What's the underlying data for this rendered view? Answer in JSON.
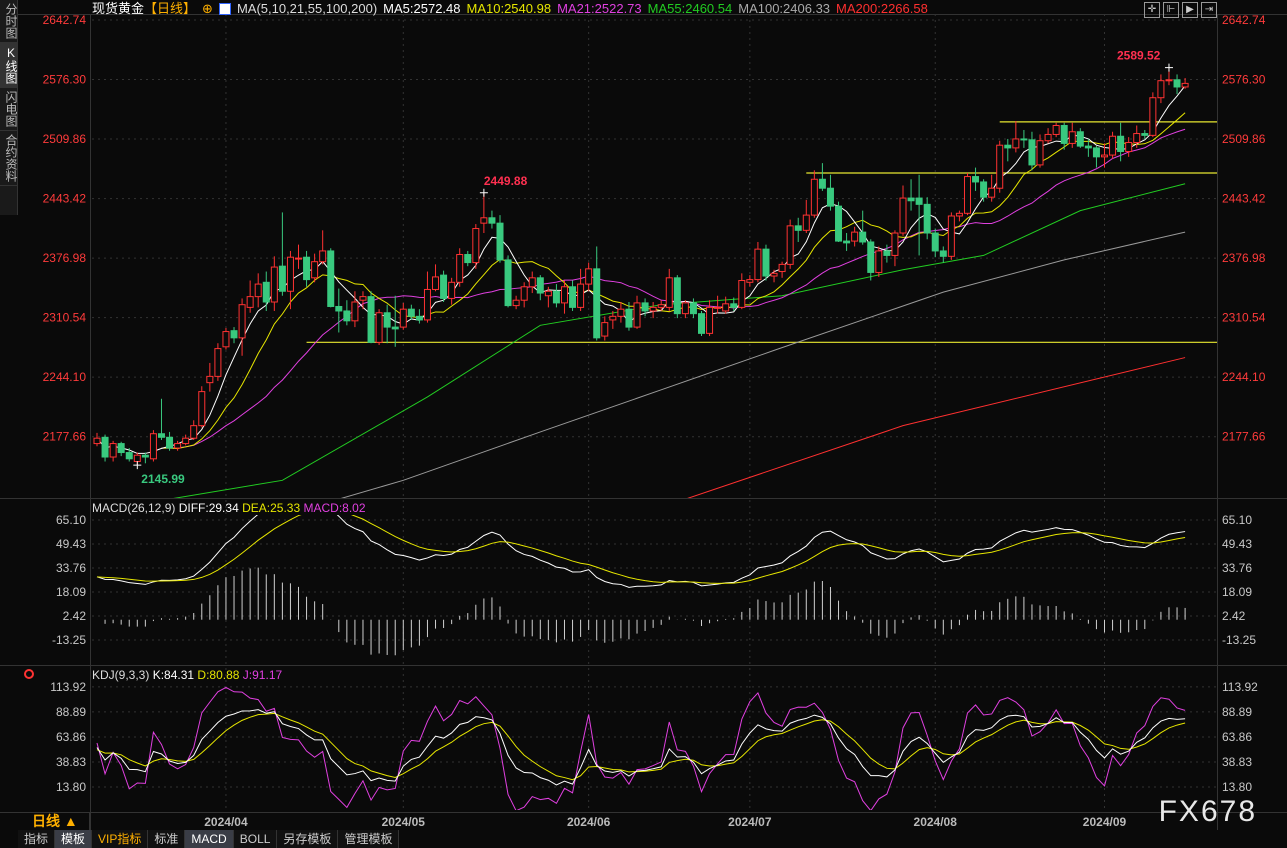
{
  "sidebar": {
    "tabs": [
      {
        "label": "分时图"
      },
      {
        "label": "K线图"
      },
      {
        "label": "闪电图"
      },
      {
        "label": "合约资料"
      }
    ]
  },
  "header": {
    "symbol": "现货黄金",
    "period": "【日线】",
    "ma_params": "MA(5,10,21,55,100,200)",
    "ma": [
      {
        "label": "MA5:2572.48",
        "color": "#ffffff"
      },
      {
        "label": "MA10:2540.98",
        "color": "#e6e600"
      },
      {
        "label": "MA21:2522.73",
        "color": "#e040e0"
      },
      {
        "label": "MA55:2460.54",
        "color": "#22cc22"
      },
      {
        "label": "MA100:2406.33",
        "color": "#aaaaaa"
      },
      {
        "label": "MA200:2266.58",
        "color": "#ff3030"
      }
    ],
    "tools": [
      "crosshair-icon",
      "zoom-in-icon",
      "scroll-right-icon",
      "goto-end-icon"
    ]
  },
  "macd_legend": {
    "name": "MACD(26,12,9)",
    "diff": "DIFF:29.34",
    "dea": "DEA:25.33",
    "macd": "MACD:8.02"
  },
  "kdj_legend": {
    "name": "KDJ(9,3,3)",
    "k": "K:84.31",
    "d": "D:80.88",
    "j": "J:91.17"
  },
  "bottom": {
    "period_label": "日线 ▲",
    "tabs": [
      {
        "label": "指标"
      },
      {
        "label": "模板"
      },
      {
        "label": "VIP指标"
      },
      {
        "label": "标准"
      },
      {
        "label": "MACD"
      },
      {
        "label": "BOLL"
      },
      {
        "label": "另存模板"
      },
      {
        "label": "管理模板"
      }
    ]
  },
  "watermark": "FX678",
  "chart_data": [
    {
      "type": "candlestick",
      "title": "现货黄金 日线",
      "price_ticks": [
        "2642.74",
        "2576.30",
        "2509.86",
        "2443.42",
        "2376.98",
        "2310.54",
        "2244.10",
        "2177.66"
      ],
      "ylim": [
        2108,
        2650
      ],
      "x_ticks": [
        {
          "index": 16,
          "label": "2024/04"
        },
        {
          "index": 38,
          "label": "2024/05"
        },
        {
          "index": 61,
          "label": "2024/06"
        },
        {
          "index": 81,
          "label": "2024/07"
        },
        {
          "index": 104,
          "label": "2024/08"
        },
        {
          "index": 125,
          "label": "2024/09"
        }
      ],
      "annotations": [
        {
          "index": 48,
          "value": 2449.88,
          "label": "2449.88",
          "color": "#ff3050"
        },
        {
          "index": 5,
          "value": 2145.99,
          "label": "2145.99",
          "color": "#39c97f"
        },
        {
          "index": 133,
          "value": 2589.52,
          "label": "2589.52",
          "color": "#ff3050"
        }
      ],
      "hlines": [
        {
          "value": 2283,
          "from": 26
        },
        {
          "value": 2472,
          "from": 88
        },
        {
          "value": 2529,
          "from": 112
        }
      ],
      "ma_long": {
        "ma55": [
          [
            9,
            2108
          ],
          [
            23,
            2129
          ],
          [
            41,
            2222
          ],
          [
            55,
            2302
          ],
          [
            70,
            2325
          ],
          [
            85,
            2335
          ],
          [
            100,
            2364
          ],
          [
            110,
            2380
          ],
          [
            122,
            2430
          ],
          [
            135,
            2460
          ]
        ],
        "ma100": [
          [
            30,
            2108
          ],
          [
            38,
            2129
          ],
          [
            55,
            2183
          ],
          [
            70,
            2230
          ],
          [
            84,
            2274
          ],
          [
            105,
            2339
          ],
          [
            120,
            2375
          ],
          [
            135,
            2406
          ]
        ],
        "ma200": [
          [
            73,
            2108
          ],
          [
            100,
            2190
          ],
          [
            135,
            2266
          ]
        ]
      },
      "ohlc": [
        [
          2170,
          2182,
          2167,
          2176
        ],
        [
          2177,
          2180,
          2150,
          2155
        ],
        [
          2155,
          2173,
          2150,
          2170
        ],
        [
          2170,
          2172,
          2156,
          2160
        ],
        [
          2160,
          2165,
          2150,
          2153
        ],
        [
          2150,
          2160,
          2146,
          2157
        ],
        [
          2157,
          2160,
          2148,
          2155
        ],
        [
          2153,
          2185,
          2150,
          2181
        ],
        [
          2181,
          2220,
          2174,
          2177
        ],
        [
          2177,
          2183,
          2162,
          2165
        ],
        [
          2165,
          2173,
          2162,
          2170
        ],
        [
          2170,
          2180,
          2168,
          2176
        ],
        [
          2176,
          2196,
          2174,
          2190
        ],
        [
          2190,
          2234,
          2188,
          2228
        ],
        [
          2238,
          2260,
          2228,
          2245
        ],
        [
          2245,
          2282,
          2240,
          2276
        ],
        [
          2278,
          2299,
          2275,
          2295
        ],
        [
          2296,
          2300,
          2282,
          2288
        ],
        [
          2288,
          2332,
          2268,
          2325
        ],
        [
          2322,
          2352,
          2316,
          2334
        ],
        [
          2334,
          2360,
          2322,
          2348
        ],
        [
          2350,
          2362,
          2318,
          2328
        ],
        [
          2328,
          2379,
          2318,
          2367
        ],
        [
          2368,
          2428,
          2335,
          2340
        ],
        [
          2340,
          2385,
          2320,
          2378
        ],
        [
          2376,
          2392,
          2365,
          2377
        ],
        [
          2378,
          2385,
          2345,
          2353
        ],
        [
          2355,
          2382,
          2350,
          2373
        ],
        [
          2373,
          2408,
          2370,
          2385
        ],
        [
          2385,
          2388,
          2322,
          2323
        ],
        [
          2323,
          2343,
          2294,
          2318
        ],
        [
          2318,
          2330,
          2302,
          2307
        ],
        [
          2307,
          2340,
          2300,
          2328
        ],
        [
          2330,
          2340,
          2320,
          2334
        ],
        [
          2334,
          2340,
          2282,
          2283
        ],
        [
          2283,
          2320,
          2280,
          2316
        ],
        [
          2316,
          2325,
          2282,
          2300
        ],
        [
          2300,
          2335,
          2278,
          2298
        ],
        [
          2300,
          2327,
          2297,
          2320
        ],
        [
          2320,
          2325,
          2308,
          2312
        ],
        [
          2312,
          2320,
          2304,
          2308
        ],
        [
          2308,
          2362,
          2305,
          2342
        ],
        [
          2342,
          2370,
          2340,
          2356
        ],
        [
          2358,
          2363,
          2328,
          2332
        ],
        [
          2332,
          2355,
          2325,
          2350
        ],
        [
          2350,
          2388,
          2345,
          2381
        ],
        [
          2381,
          2385,
          2368,
          2372
        ],
        [
          2372,
          2415,
          2365,
          2410
        ],
        [
          2416,
          2449.88,
          2405,
          2422
        ],
        [
          2422,
          2430,
          2410,
          2416
        ],
        [
          2416,
          2425,
          2372,
          2375
        ],
        [
          2375,
          2380,
          2322,
          2324
        ],
        [
          2324,
          2335,
          2320,
          2330
        ],
        [
          2330,
          2350,
          2322,
          2345
        ],
        [
          2345,
          2362,
          2338,
          2355
        ],
        [
          2355,
          2358,
          2330,
          2338
        ],
        [
          2335,
          2345,
          2322,
          2340
        ],
        [
          2340,
          2348,
          2322,
          2327
        ],
        [
          2327,
          2352,
          2315,
          2345
        ],
        [
          2345,
          2352,
          2318,
          2322
        ],
        [
          2322,
          2365,
          2318,
          2348
        ],
        [
          2348,
          2372,
          2340,
          2365
        ],
        [
          2365,
          2390,
          2285,
          2288
        ],
        [
          2290,
          2312,
          2285,
          2305
        ],
        [
          2308,
          2318,
          2298,
          2312
        ],
        [
          2312,
          2328,
          2305,
          2320
        ],
        [
          2320,
          2328,
          2296,
          2300
        ],
        [
          2300,
          2335,
          2298,
          2327
        ],
        [
          2327,
          2332,
          2312,
          2318
        ],
        [
          2318,
          2328,
          2310,
          2322
        ],
        [
          2322,
          2330,
          2318,
          2325
        ],
        [
          2322,
          2365,
          2318,
          2355
        ],
        [
          2355,
          2358,
          2310,
          2315
        ],
        [
          2315,
          2330,
          2310,
          2327
        ],
        [
          2327,
          2332,
          2310,
          2315
        ],
        [
          2315,
          2318,
          2290,
          2293
        ],
        [
          2293,
          2330,
          2290,
          2322
        ],
        [
          2322,
          2335,
          2315,
          2322
        ],
        [
          2318,
          2334,
          2315,
          2326
        ],
        [
          2326,
          2333,
          2318,
          2322
        ],
        [
          2322,
          2360,
          2320,
          2352
        ],
        [
          2350,
          2358,
          2345,
          2353
        ],
        [
          2353,
          2395,
          2350,
          2387
        ],
        [
          2387,
          2392,
          2352,
          2357
        ],
        [
          2357,
          2364,
          2350,
          2360
        ],
        [
          2362,
          2373,
          2355,
          2370
        ],
        [
          2370,
          2420,
          2365,
          2413
        ],
        [
          2413,
          2422,
          2395,
          2408
        ],
        [
          2408,
          2442,
          2405,
          2425
        ],
        [
          2425,
          2475,
          2422,
          2465
        ],
        [
          2465,
          2483,
          2452,
          2455
        ],
        [
          2455,
          2470,
          2430,
          2435
        ],
        [
          2435,
          2440,
          2395,
          2396
        ],
        [
          2396,
          2405,
          2385,
          2394
        ],
        [
          2396,
          2412,
          2390,
          2406
        ],
        [
          2406,
          2430,
          2392,
          2395
        ],
        [
          2395,
          2398,
          2352,
          2361
        ],
        [
          2361,
          2390,
          2356,
          2385
        ],
        [
          2385,
          2392,
          2372,
          2380
        ],
        [
          2380,
          2408,
          2368,
          2405
        ],
        [
          2405,
          2458,
          2402,
          2444
        ],
        [
          2444,
          2465,
          2430,
          2441
        ],
        [
          2444,
          2470,
          2380,
          2437
        ],
        [
          2437,
          2445,
          2398,
          2405
        ],
        [
          2405,
          2410,
          2378,
          2385
        ],
        [
          2385,
          2390,
          2372,
          2379
        ],
        [
          2379,
          2428,
          2375,
          2424
        ],
        [
          2424,
          2430,
          2418,
          2427
        ],
        [
          2427,
          2472,
          2425,
          2468
        ],
        [
          2468,
          2478,
          2452,
          2462
        ],
        [
          2462,
          2465,
          2440,
          2445
        ],
        [
          2445,
          2470,
          2440,
          2455
        ],
        [
          2455,
          2508,
          2450,
          2503
        ],
        [
          2503,
          2510,
          2485,
          2500
        ],
        [
          2500,
          2530,
          2495,
          2510
        ],
        [
          2510,
          2520,
          2500,
          2509
        ],
        [
          2509,
          2518,
          2475,
          2481
        ],
        [
          2481,
          2515,
          2478,
          2508
        ],
        [
          2508,
          2522,
          2505,
          2515
        ],
        [
          2515,
          2528,
          2512,
          2525
        ],
        [
          2525,
          2528,
          2498,
          2505
        ],
        [
          2505,
          2528,
          2500,
          2518
        ],
        [
          2518,
          2522,
          2500,
          2502
        ],
        [
          2502,
          2510,
          2490,
          2500
        ],
        [
          2500,
          2502,
          2478,
          2490
        ],
        [
          2490,
          2505,
          2478,
          2492
        ],
        [
          2492,
          2518,
          2488,
          2513
        ],
        [
          2513,
          2528,
          2485,
          2496
        ],
        [
          2496,
          2512,
          2490,
          2506
        ],
        [
          2506,
          2525,
          2500,
          2516
        ],
        [
          2516,
          2520,
          2510,
          2514
        ],
        [
          2514,
          2562,
          2512,
          2556
        ],
        [
          2556,
          2582,
          2550,
          2575
        ],
        [
          2575,
          2589.52,
          2570,
          2576
        ],
        [
          2576,
          2582,
          2560,
          2568
        ],
        [
          2568,
          2578,
          2566,
          2572
        ]
      ],
      "colors": {
        "up": "#ff3232",
        "down": "#39c97f",
        "hline": "#e8e830"
      }
    },
    {
      "type": "line",
      "title": "MACD(26,12,9)",
      "ticks": [
        "65.10",
        "49.43",
        "33.76",
        "18.09",
        "2.42",
        "-13.25"
      ],
      "ylim": [
        -20,
        72
      ],
      "series": [
        {
          "name": "DIFF",
          "color": "#ffffff"
        },
        {
          "name": "DEA",
          "color": "#e6e600"
        },
        {
          "name": "MACD",
          "color": "#cccccc"
        }
      ]
    },
    {
      "type": "line",
      "title": "KDJ(9,3,3)",
      "ticks": [
        "113.92",
        "88.89",
        "63.86",
        "38.83",
        "13.80"
      ],
      "ylim": [
        -5,
        125
      ],
      "series": [
        {
          "name": "K",
          "color": "#ffffff"
        },
        {
          "name": "D",
          "color": "#e6e600"
        },
        {
          "name": "J",
          "color": "#e040e0"
        }
      ]
    }
  ]
}
